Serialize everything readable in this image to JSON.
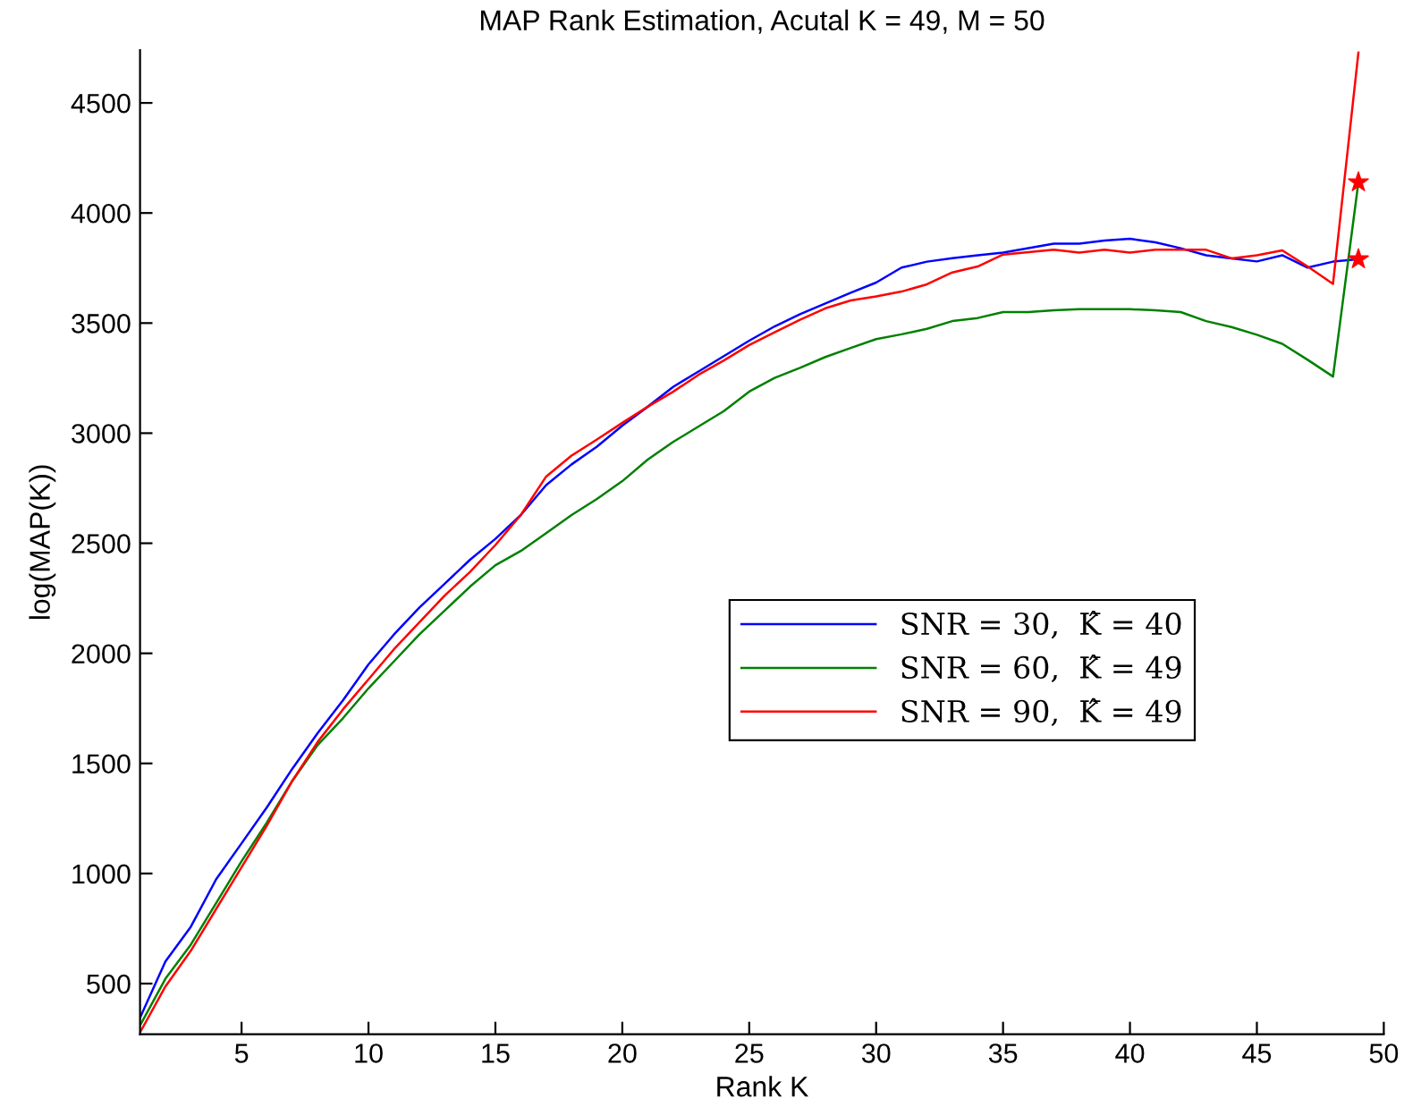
{
  "chart_data": {
    "type": "line",
    "title": "MAP Rank Estimation, Acutal K = 49, M = 50",
    "xlabel": "Rank K",
    "ylabel": "log(MAP(K))",
    "x": [
      1,
      2,
      3,
      4,
      5,
      6,
      7,
      8,
      9,
      10,
      11,
      12,
      13,
      14,
      15,
      16,
      17,
      18,
      19,
      20,
      21,
      22,
      23,
      24,
      25,
      26,
      27,
      28,
      29,
      30,
      31,
      32,
      33,
      34,
      35,
      36,
      37,
      38,
      39,
      40,
      41,
      42,
      43,
      44,
      45,
      46,
      47,
      48,
      49
    ],
    "series": [
      {
        "name": "SNR = 30,  K̂ = 40",
        "color": "#0000ff",
        "values": [
          345,
          600,
          758,
          974,
          1137,
          1301,
          1476,
          1638,
          1787,
          1950,
          2085,
          2207,
          2316,
          2425,
          2520,
          2628,
          2764,
          2858,
          2939,
          3034,
          3120,
          3210,
          3280,
          3350,
          3420,
          3485,
          3540,
          3589,
          3638,
          3684,
          3752,
          3779,
          3795,
          3808,
          3820,
          3840,
          3861,
          3861,
          3875,
          3883,
          3867,
          3840,
          3808,
          3794,
          3780,
          3808,
          3752,
          3779,
          3790
        ]
      },
      {
        "name": "SNR = 60,  K̂ = 49",
        "color": "#008000",
        "values": [
          310,
          522,
          677,
          866,
          1056,
          1232,
          1421,
          1584,
          1706,
          1841,
          1963,
          2085,
          2194,
          2303,
          2400,
          2465,
          2546,
          2628,
          2701,
          2782,
          2880,
          2960,
          3030,
          3100,
          3189,
          3251,
          3297,
          3346,
          3387,
          3427,
          3449,
          3474,
          3509,
          3523,
          3550,
          3550,
          3558,
          3563,
          3563,
          3563,
          3558,
          3550,
          3509,
          3482,
          3447,
          3406,
          3333,
          3257,
          4140
        ]
      },
      {
        "name": "SNR = 90,  K̂ = 49",
        "color": "#ff0000",
        "values": [
          278,
          487,
          649,
          839,
          1028,
          1218,
          1421,
          1598,
          1746,
          1882,
          2018,
          2140,
          2262,
          2370,
          2492,
          2628,
          2803,
          2898,
          2971,
          3047,
          3120,
          3188,
          3265,
          3330,
          3400,
          3458,
          3515,
          3567,
          3603,
          3621,
          3643,
          3676,
          3730,
          3757,
          3811,
          3822,
          3833,
          3820,
          3833,
          3820,
          3833,
          3833,
          3833,
          3794,
          3808,
          3830,
          3757,
          3678,
          4728
        ]
      },
      {
        "type": "scatter",
        "marker": "star",
        "color": "#ff0000",
        "x": [
          49,
          49
        ],
        "values": [
          4140,
          3790
        ]
      }
    ],
    "xlim": [
      1,
      50
    ],
    "ylim": [
      270,
      4740
    ],
    "xticks": [
      5,
      10,
      15,
      20,
      25,
      30,
      35,
      40,
      45,
      50
    ],
    "yticks": [
      500,
      1000,
      1500,
      2000,
      2500,
      3000,
      3500,
      4000,
      4500
    ],
    "grid": false,
    "legend": "center right",
    "marker": "none",
    "line_style": "solid"
  }
}
